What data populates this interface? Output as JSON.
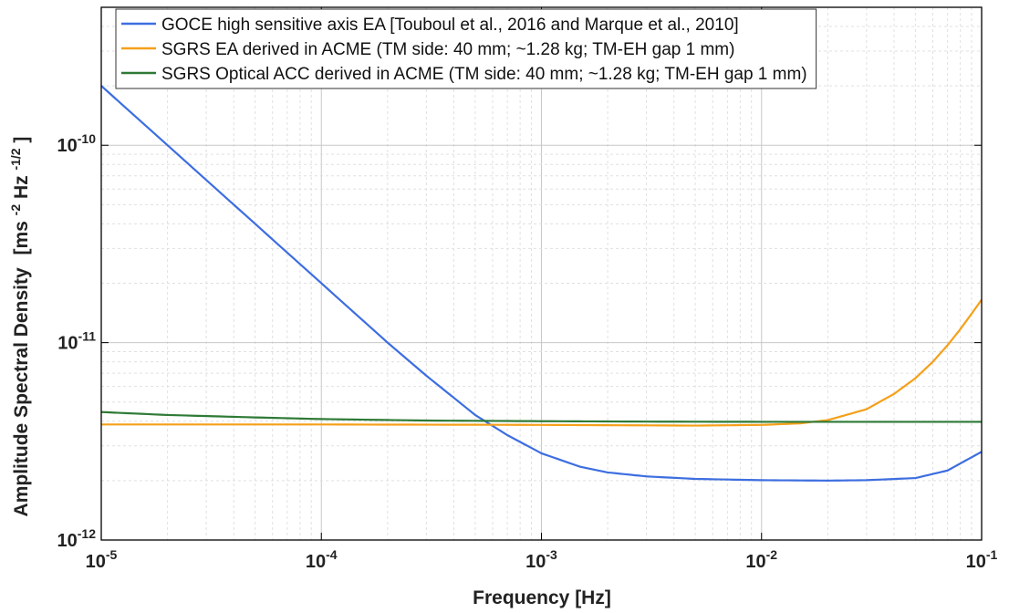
{
  "chart_data": {
    "type": "line",
    "scale": {
      "x": "log",
      "y": "log"
    },
    "xlabel": "Frequency [Hz]",
    "ylabel": "Amplitude  Spectral  Density",
    "ylabel_units": {
      "prefix": "[ms",
      "sup1": "-2",
      "mid": "Hz",
      "sup2": "-1/2",
      "suffix": "]"
    },
    "xlim": [
      1e-05,
      0.1
    ],
    "ylim": [
      1e-12,
      5e-10
    ],
    "grid": true,
    "legend_position": "top-right",
    "x_ticks": [
      {
        "value": 1e-05,
        "base": "10",
        "exp": "-5"
      },
      {
        "value": 0.0001,
        "base": "10",
        "exp": "-4"
      },
      {
        "value": 0.001,
        "base": "10",
        "exp": "-3"
      },
      {
        "value": 0.01,
        "base": "10",
        "exp": "-2"
      },
      {
        "value": 0.1,
        "base": "10",
        "exp": "-1"
      }
    ],
    "y_ticks": [
      {
        "value": 1e-12,
        "base": "10",
        "exp": "-12"
      },
      {
        "value": 1e-11,
        "base": "10",
        "exp": "-11"
      },
      {
        "value": 1e-10,
        "base": "10",
        "exp": "-10"
      }
    ],
    "series": [
      {
        "name": "GOCE high sensitive axis EA [Touboul et al., 2016 and Marque et al., 2010]",
        "color": "#3d6ee0",
        "x": [
          1e-05,
          2e-05,
          5e-05,
          0.0001,
          0.0002,
          0.0003,
          0.0005,
          0.0007,
          0.001,
          0.0015,
          0.002,
          0.003,
          0.005,
          0.01,
          0.02,
          0.03,
          0.05,
          0.07,
          0.1
        ],
        "y": [
          2e-10,
          1e-10,
          4e-11,
          2e-11,
          1e-11,
          6.8e-12,
          4.3e-12,
          3.4e-12,
          2.75e-12,
          2.35e-12,
          2.2e-12,
          2.1e-12,
          2.04e-12,
          2.01e-12,
          2e-12,
          2.01e-12,
          2.06e-12,
          2.25e-12,
          2.8e-12
        ]
      },
      {
        "name": "SGRS EA derived in ACME (TM side: 40 mm; ~1.28 kg; TM-EH gap 1 mm)",
        "color": "#f5a01a",
        "x": [
          1e-05,
          0.0001,
          0.001,
          0.005,
          0.01,
          0.015,
          0.02,
          0.03,
          0.04,
          0.05,
          0.06,
          0.07,
          0.08,
          0.09,
          0.1
        ],
        "y": [
          3.85e-12,
          3.85e-12,
          3.83e-12,
          3.8e-12,
          3.83e-12,
          3.9e-12,
          4.05e-12,
          4.6e-12,
          5.5e-12,
          6.6e-12,
          8e-12,
          9.7e-12,
          1.17e-11,
          1.4e-11,
          1.65e-11
        ]
      },
      {
        "name": "SGRS Optical ACC derived in ACME (TM side: 40 mm; ~1.28 kg; TM-EH gap 1 mm)",
        "color": "#2e7a36",
        "x": [
          1e-05,
          2e-05,
          5e-05,
          0.0001,
          0.0003,
          0.001,
          0.003,
          0.01,
          0.03,
          0.1
        ],
        "y": [
          4.45e-12,
          4.3e-12,
          4.18e-12,
          4.1e-12,
          4.03e-12,
          4e-12,
          3.98e-12,
          3.97e-12,
          3.97e-12,
          3.97e-12
        ]
      }
    ]
  }
}
